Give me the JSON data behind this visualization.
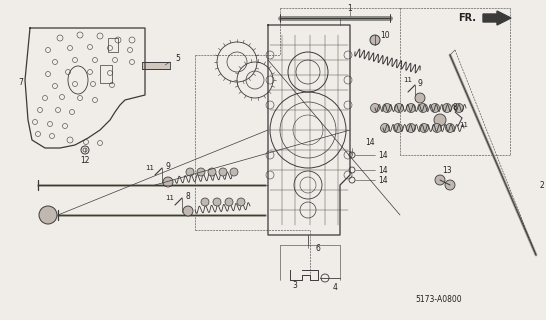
{
  "bg_color": "#f0ede8",
  "line_color": "#3a3a3a",
  "label_color": "#222222",
  "diagram_code": "5173-A0800",
  "fr_label": "FR.",
  "figsize": [
    5.46,
    3.2
  ],
  "dpi": 100
}
